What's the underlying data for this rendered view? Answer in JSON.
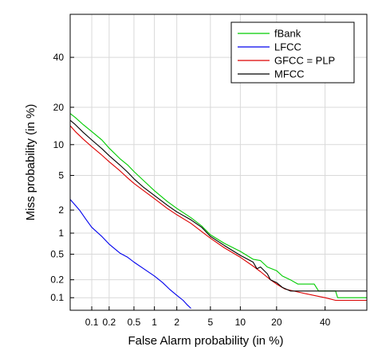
{
  "chart_data": {
    "type": "line",
    "title": "",
    "xlabel": "False Alarm probability (in %)",
    "ylabel": "Miss probability (in %)",
    "xscale": "probit",
    "yscale": "probit",
    "xlim": [
      0.04,
      60
    ],
    "ylim": [
      0.06,
      60
    ],
    "xticks": [
      0.1,
      0.2,
      0.5,
      1,
      2,
      5,
      10,
      20,
      40
    ],
    "xtick_labels": [
      "0.1",
      "0.2",
      "0.5",
      "1",
      "2",
      "5",
      "10",
      "20",
      "40"
    ],
    "yticks": [
      0.1,
      0.2,
      0.5,
      1,
      2,
      5,
      10,
      20,
      40
    ],
    "ytick_labels": [
      "0.1",
      "0.2",
      "0.5",
      "1",
      "2",
      "5",
      "10",
      "20",
      "40"
    ],
    "grid": true,
    "legend_position": "top-right",
    "series": [
      {
        "name": "fBank",
        "color": "#00cc00",
        "points": [
          [
            0.04,
            18.0
          ],
          [
            0.05,
            16.8
          ],
          [
            0.07,
            14.8
          ],
          [
            0.1,
            13.0
          ],
          [
            0.15,
            11.0
          ],
          [
            0.2,
            9.3
          ],
          [
            0.3,
            7.4
          ],
          [
            0.4,
            6.4
          ],
          [
            0.5,
            5.5
          ],
          [
            0.7,
            4.4
          ],
          [
            1.0,
            3.4
          ],
          [
            1.5,
            2.55
          ],
          [
            2.0,
            2.1
          ],
          [
            3.0,
            1.6
          ],
          [
            4.0,
            1.25
          ],
          [
            5.0,
            0.95
          ],
          [
            7.0,
            0.72
          ],
          [
            10.0,
            0.55
          ],
          [
            13.0,
            0.42
          ],
          [
            15.0,
            0.4
          ],
          [
            17.0,
            0.32
          ],
          [
            20.0,
            0.28
          ],
          [
            22.0,
            0.23
          ],
          [
            25.0,
            0.2
          ],
          [
            28.0,
            0.17
          ],
          [
            35.0,
            0.17
          ],
          [
            37.0,
            0.13
          ],
          [
            45.0,
            0.13
          ],
          [
            46.0,
            0.1
          ],
          [
            60.0,
            0.1
          ]
        ]
      },
      {
        "name": "LFCC",
        "color": "#0000ee",
        "points": [
          [
            0.04,
            2.7
          ],
          [
            0.06,
            2.0
          ],
          [
            0.08,
            1.5
          ],
          [
            0.1,
            1.2
          ],
          [
            0.15,
            0.9
          ],
          [
            0.2,
            0.7
          ],
          [
            0.3,
            0.52
          ],
          [
            0.4,
            0.45
          ],
          [
            0.5,
            0.38
          ],
          [
            0.7,
            0.3
          ],
          [
            1.0,
            0.23
          ],
          [
            1.3,
            0.18
          ],
          [
            1.6,
            0.14
          ],
          [
            2.0,
            0.11
          ],
          [
            2.4,
            0.09
          ],
          [
            2.7,
            0.075
          ],
          [
            3.0,
            0.065
          ]
        ]
      },
      {
        "name": "GFCC = PLP",
        "color": "#dd0000",
        "points": [
          [
            0.04,
            14.5
          ],
          [
            0.05,
            13.0
          ],
          [
            0.07,
            11.2
          ],
          [
            0.1,
            9.6
          ],
          [
            0.15,
            8.0
          ],
          [
            0.2,
            6.9
          ],
          [
            0.3,
            5.6
          ],
          [
            0.4,
            4.7
          ],
          [
            0.5,
            4.1
          ],
          [
            0.7,
            3.4
          ],
          [
            1.0,
            2.75
          ],
          [
            1.5,
            2.1
          ],
          [
            2.0,
            1.75
          ],
          [
            3.0,
            1.35
          ],
          [
            4.0,
            1.05
          ],
          [
            5.0,
            0.85
          ],
          [
            7.0,
            0.62
          ],
          [
            10.0,
            0.45
          ],
          [
            13.0,
            0.33
          ],
          [
            15.0,
            0.27
          ],
          [
            18.0,
            0.2
          ],
          [
            20.0,
            0.17
          ],
          [
            23.0,
            0.14
          ],
          [
            30.0,
            0.12
          ],
          [
            40.0,
            0.1
          ],
          [
            45.0,
            0.09
          ],
          [
            60.0,
            0.09
          ]
        ]
      },
      {
        "name": "MFCC",
        "color": "#000000",
        "points": [
          [
            0.04,
            16.0
          ],
          [
            0.05,
            14.8
          ],
          [
            0.07,
            12.8
          ],
          [
            0.1,
            11.0
          ],
          [
            0.15,
            9.2
          ],
          [
            0.2,
            7.9
          ],
          [
            0.3,
            6.4
          ],
          [
            0.4,
            5.4
          ],
          [
            0.5,
            4.6
          ],
          [
            0.7,
            3.7
          ],
          [
            1.0,
            3.0
          ],
          [
            1.5,
            2.3
          ],
          [
            2.0,
            1.9
          ],
          [
            3.0,
            1.5
          ],
          [
            4.0,
            1.2
          ],
          [
            5.0,
            0.9
          ],
          [
            7.0,
            0.67
          ],
          [
            10.0,
            0.48
          ],
          [
            13.0,
            0.38
          ],
          [
            14.0,
            0.3
          ],
          [
            15.0,
            0.32
          ],
          [
            17.0,
            0.25
          ],
          [
            18.0,
            0.2
          ],
          [
            20.0,
            0.18
          ],
          [
            22.0,
            0.15
          ],
          [
            25.0,
            0.13
          ],
          [
            60.0,
            0.13
          ]
        ]
      }
    ]
  }
}
